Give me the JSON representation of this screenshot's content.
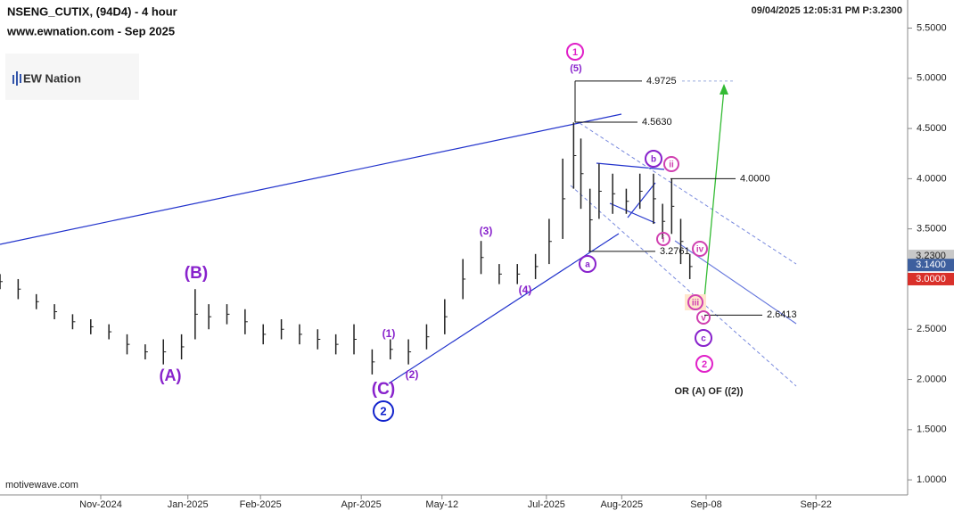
{
  "chart_data": {
    "type": "range-bar",
    "title": "NSENG_CUTIX, (94D4) - 4 hour",
    "subtitle": "www.ewnation.com  - Sep 2025",
    "status": "09/04/2025 12:05:31 PM  P:3.2300",
    "logo": "EW Nation",
    "footer": "motivewave.com",
    "note": "OR (A) OF ((2))",
    "color": "#222222",
    "x": [
      0,
      2,
      4,
      6,
      8,
      10,
      12,
      14,
      16,
      18,
      20,
      21.5,
      23,
      25,
      27,
      29,
      31,
      33,
      35,
      37,
      39,
      41,
      43,
      45,
      47,
      49,
      51,
      53,
      55,
      57,
      59,
      60.5,
      62,
      63.2,
      64,
      65,
      66,
      67.5,
      69,
      70.5,
      72,
      73,
      74,
      75,
      76
    ],
    "high": [
      3.05,
      3.0,
      2.85,
      2.75,
      2.65,
      2.6,
      2.55,
      2.45,
      2.35,
      2.4,
      2.45,
      2.9,
      2.75,
      2.75,
      2.7,
      2.55,
      2.6,
      2.55,
      2.5,
      2.45,
      2.55,
      2.3,
      2.4,
      2.4,
      2.55,
      2.8,
      3.2,
      3.38,
      3.15,
      3.15,
      3.25,
      3.6,
      4.2,
      4.56,
      4.4,
      3.9,
      4.15,
      4.05,
      3.9,
      4.05,
      4.05,
      3.75,
      4.0,
      3.6,
      3.25
    ],
    "low": [
      2.9,
      2.8,
      2.7,
      2.6,
      2.5,
      2.45,
      2.4,
      2.25,
      2.2,
      2.15,
      2.2,
      2.4,
      2.5,
      2.55,
      2.45,
      2.35,
      2.4,
      2.35,
      2.3,
      2.25,
      2.25,
      2.05,
      2.2,
      2.15,
      2.3,
      2.45,
      2.8,
      3.05,
      2.95,
      2.95,
      3.0,
      3.15,
      3.4,
      3.9,
      3.7,
      3.28,
      3.6,
      3.65,
      3.65,
      3.7,
      3.55,
      3.4,
      3.45,
      3.15,
      3.0
    ],
    "xlim": [
      0,
      100
    ],
    "xticks": [
      {
        "value": 11.1,
        "label": "Nov-2024"
      },
      {
        "value": 20.7,
        "label": "Jan-2025"
      },
      {
        "value": 28.7,
        "label": "Feb-2025"
      },
      {
        "value": 39.8,
        "label": "Apr-2025"
      },
      {
        "value": 48.7,
        "label": "May-12"
      },
      {
        "value": 60.2,
        "label": "Jul-2025"
      },
      {
        "value": 68.5,
        "label": "Aug-2025"
      },
      {
        "value": 77.8,
        "label": "Sep-08"
      },
      {
        "value": 89.9,
        "label": "Sep-22"
      }
    ],
    "ylim": [
      0.85,
      5.78
    ],
    "yticks": [
      {
        "value": 1,
        "label": "1.0000"
      },
      {
        "value": 1.5,
        "label": "1.5000"
      },
      {
        "value": 2,
        "label": "2.0000"
      },
      {
        "value": 2.5,
        "label": "2.5000"
      },
      {
        "value": 3,
        "label": "3.0000"
      },
      {
        "value": 3.5,
        "label": "3.5000"
      },
      {
        "value": 4,
        "label": "4.0000"
      },
      {
        "value": 4.5,
        "label": "4.5000"
      },
      {
        "value": 5,
        "label": "5.0000"
      },
      {
        "value": 5.5,
        "label": "5.5000"
      }
    ],
    "price_tags": [
      {
        "value": 3.23,
        "label": "3.2300",
        "color": "#c8c8c8"
      },
      {
        "value": 3.14,
        "label": "3.1400",
        "color": "#3d5f9e"
      },
      {
        "value": 3.0,
        "label": "3.0000",
        "color": "#d9302a"
      }
    ],
    "levels": [
      {
        "value": 4.9725,
        "label": "4.9725"
      },
      {
        "value": 4.563,
        "label": "4.5630"
      },
      {
        "value": 4.0,
        "label": "4.0000"
      },
      {
        "value": 3.2761,
        "label": "3.2761"
      },
      {
        "value": 2.6413,
        "label": "2.6413"
      }
    ],
    "waves": [
      "1",
      "(5)",
      "(B)",
      "(A)",
      "(1)",
      "(2)",
      "(C)",
      "2",
      "(3)",
      "(4)",
      "a",
      "b",
      "c",
      "2",
      "ii",
      "i",
      "iv",
      "iii",
      "v"
    ]
  }
}
